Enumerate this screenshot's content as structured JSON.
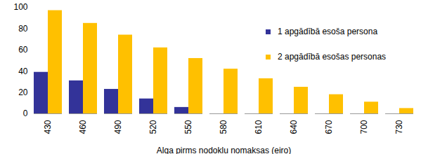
{
  "chart_data": {
    "type": "bar",
    "x_label": "Alga pirms nodokļu nomaksas (eiro)",
    "categories": [
      430,
      460,
      490,
      520,
      550,
      580,
      610,
      640,
      670,
      700,
      730
    ],
    "series": [
      {
        "name": "1 apgādībā esoša persona",
        "color": "#333399",
        "values": [
          39,
          31,
          23,
          14,
          6,
          0,
          0,
          0,
          0,
          0,
          0
        ]
      },
      {
        "name": "2 apgādībā esošas personas",
        "color": "#ffc000",
        "values": [
          97,
          85,
          74,
          62,
          52,
          42,
          33,
          25,
          18,
          11,
          5
        ]
      }
    ],
    "ylim": [
      0,
      100
    ],
    "yticks": [
      0,
      20,
      40,
      60,
      80,
      100
    ],
    "grid": false,
    "legend": "right"
  }
}
